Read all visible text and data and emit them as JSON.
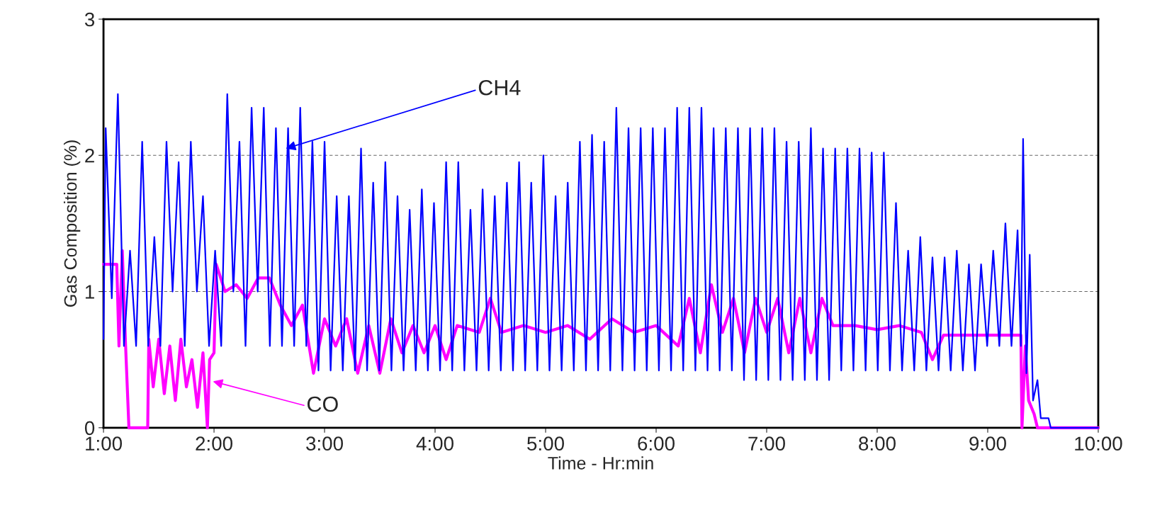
{
  "chart_data": {
    "type": "line",
    "xlabel": "Time - Hr:min",
    "ylabel": "Gas Composition (%)",
    "xlim": [
      1,
      10
    ],
    "ylim": [
      0,
      3
    ],
    "xticks": [
      {
        "value": 1,
        "label": "1:00"
      },
      {
        "value": 2,
        "label": "2:00"
      },
      {
        "value": 3,
        "label": "3:00"
      },
      {
        "value": 4,
        "label": "4:00"
      },
      {
        "value": 5,
        "label": "5:00"
      },
      {
        "value": 6,
        "label": "6:00"
      },
      {
        "value": 7,
        "label": "7:00"
      },
      {
        "value": 8,
        "label": "8:00"
      },
      {
        "value": 9,
        "label": "9:00"
      },
      {
        "value": 10,
        "label": "10:00"
      }
    ],
    "yticks": [
      0,
      1,
      2,
      3
    ],
    "grid": "y",
    "legend": false,
    "marker": "none",
    "line_style": "solid",
    "annotations": [
      {
        "text": "CH4",
        "x": 2.65,
        "y": 2.05
      },
      {
        "text": "CO",
        "x": 1.99,
        "y": 0.34
      }
    ],
    "series": [
      {
        "color": "#0000ff",
        "x": [
          1.0,
          1.02,
          1.075,
          1.13,
          1.185,
          1.24,
          1.295,
          1.35,
          1.405,
          1.46,
          1.515,
          1.57,
          1.625,
          1.68,
          1.735,
          1.79,
          1.845,
          1.9,
          1.955,
          2.01,
          2.065,
          2.12,
          2.175,
          2.23,
          2.285,
          2.34,
          2.395,
          2.45,
          2.505,
          2.56,
          2.615,
          2.67,
          2.725,
          2.78,
          2.835,
          2.89,
          2.945,
          3.0,
          3.055,
          3.11,
          3.165,
          3.22,
          3.275,
          3.33,
          3.385,
          3.44,
          3.495,
          3.55,
          3.605,
          3.66,
          3.715,
          3.77,
          3.825,
          3.88,
          3.935,
          3.99,
          4.045,
          4.1,
          4.155,
          4.21,
          4.265,
          4.32,
          4.375,
          4.43,
          4.485,
          4.54,
          4.595,
          4.65,
          4.705,
          4.76,
          4.815,
          4.87,
          4.925,
          4.98,
          5.035,
          5.09,
          5.145,
          5.2,
          5.255,
          5.31,
          5.365,
          5.42,
          5.475,
          5.53,
          5.585,
          5.64,
          5.695,
          5.75,
          5.805,
          5.86,
          5.915,
          5.97,
          6.025,
          6.08,
          6.135,
          6.19,
          6.245,
          6.3,
          6.355,
          6.41,
          6.465,
          6.52,
          6.575,
          6.63,
          6.685,
          6.74,
          6.795,
          6.85,
          6.905,
          6.96,
          7.015,
          7.07,
          7.125,
          7.18,
          7.235,
          7.29,
          7.345,
          7.4,
          7.455,
          7.51,
          7.565,
          7.62,
          7.675,
          7.73,
          7.785,
          7.84,
          7.895,
          7.95,
          8.005,
          8.06,
          8.115,
          8.17,
          8.225,
          8.28,
          8.335,
          8.39,
          8.445,
          8.5,
          8.555,
          8.61,
          8.665,
          8.72,
          8.775,
          8.83,
          8.885,
          8.94,
          8.995,
          9.05,
          9.105,
          9.16,
          9.215,
          9.27,
          9.3,
          9.32,
          9.35,
          9.38,
          9.41,
          9.45,
          9.48,
          9.55,
          9.57,
          10.0
        ],
        "values": [
          0.65,
          2.2,
          0.95,
          2.45,
          0.6,
          1.3,
          0.6,
          2.1,
          0.6,
          1.4,
          0.6,
          2.1,
          1.0,
          1.95,
          0.6,
          2.1,
          1.0,
          1.7,
          0.6,
          1.3,
          0.6,
          2.45,
          1.0,
          2.1,
          0.6,
          2.35,
          1.0,
          2.35,
          0.6,
          2.2,
          0.6,
          2.2,
          0.6,
          2.35,
          0.6,
          2.1,
          0.42,
          2.1,
          0.42,
          1.7,
          0.42,
          1.7,
          0.42,
          2.05,
          0.42,
          1.8,
          0.42,
          1.95,
          0.42,
          1.7,
          0.42,
          1.6,
          0.42,
          1.75,
          0.42,
          1.65,
          0.42,
          1.95,
          0.42,
          1.95,
          0.42,
          1.6,
          0.42,
          1.75,
          0.42,
          1.7,
          0.42,
          1.8,
          0.42,
          1.95,
          0.42,
          1.8,
          0.42,
          2.0,
          0.42,
          1.7,
          0.42,
          1.8,
          0.42,
          2.1,
          0.42,
          2.15,
          0.42,
          2.1,
          0.42,
          2.35,
          0.42,
          2.2,
          0.42,
          2.2,
          0.42,
          2.2,
          0.42,
          2.2,
          0.42,
          2.35,
          0.42,
          2.35,
          0.42,
          2.35,
          0.42,
          2.2,
          0.42,
          2.2,
          0.42,
          2.2,
          0.35,
          2.2,
          0.35,
          2.2,
          0.35,
          2.2,
          0.35,
          2.1,
          0.35,
          2.1,
          0.35,
          2.2,
          0.35,
          2.05,
          0.35,
          2.05,
          0.42,
          2.05,
          0.42,
          2.05,
          0.42,
          2.02,
          0.42,
          2.02,
          0.42,
          1.65,
          0.42,
          1.3,
          0.42,
          1.4,
          0.42,
          1.25,
          0.42,
          1.25,
          0.42,
          1.3,
          0.42,
          1.2,
          0.42,
          1.2,
          0.6,
          1.3,
          0.6,
          1.5,
          0.6,
          1.45,
          0.6,
          2.12,
          0.4,
          1.27,
          0.2,
          0.35,
          0.07,
          0.07,
          0.0,
          0.0
        ]
      },
      {
        "color": "#ff00ff",
        "x": [
          1.0,
          1.12,
          1.14,
          1.17,
          1.2,
          1.23,
          1.4,
          1.41,
          1.45,
          1.5,
          1.55,
          1.6,
          1.65,
          1.7,
          1.75,
          1.8,
          1.85,
          1.9,
          1.94,
          1.96,
          2.0,
          2.02,
          2.1,
          2.2,
          2.3,
          2.4,
          2.5,
          2.6,
          2.7,
          2.8,
          2.9,
          3.0,
          3.1,
          3.2,
          3.3,
          3.4,
          3.5,
          3.6,
          3.7,
          3.8,
          3.9,
          4.0,
          4.1,
          4.2,
          4.4,
          4.5,
          4.6,
          4.8,
          5.0,
          5.2,
          5.4,
          5.6,
          5.8,
          6.0,
          6.2,
          6.3,
          6.4,
          6.5,
          6.6,
          6.7,
          6.8,
          6.9,
          7.0,
          7.1,
          7.2,
          7.3,
          7.4,
          7.5,
          7.6,
          7.8,
          8.0,
          8.2,
          8.4,
          8.5,
          8.6,
          9.0,
          9.3,
          9.31,
          9.34,
          9.37,
          9.42,
          9.45,
          10.0
        ],
        "values": [
          1.2,
          1.2,
          0.6,
          1.3,
          0.6,
          0.0,
          0.0,
          0.65,
          0.3,
          0.65,
          0.25,
          0.6,
          0.2,
          0.65,
          0.3,
          0.5,
          0.15,
          0.55,
          0.0,
          0.5,
          0.55,
          1.2,
          1.0,
          1.05,
          0.95,
          1.1,
          1.1,
          0.9,
          0.75,
          0.9,
          0.4,
          0.8,
          0.6,
          0.8,
          0.4,
          0.75,
          0.4,
          0.8,
          0.55,
          0.75,
          0.55,
          0.75,
          0.5,
          0.75,
          0.7,
          0.95,
          0.7,
          0.75,
          0.7,
          0.75,
          0.65,
          0.8,
          0.7,
          0.75,
          0.6,
          0.95,
          0.55,
          1.05,
          0.7,
          0.95,
          0.55,
          0.95,
          0.7,
          0.95,
          0.55,
          0.95,
          0.55,
          0.95,
          0.75,
          0.75,
          0.72,
          0.75,
          0.7,
          0.5,
          0.68,
          0.68,
          0.68,
          0.0,
          0.6,
          0.2,
          0.1,
          0.0,
          0.0
        ]
      }
    ]
  }
}
